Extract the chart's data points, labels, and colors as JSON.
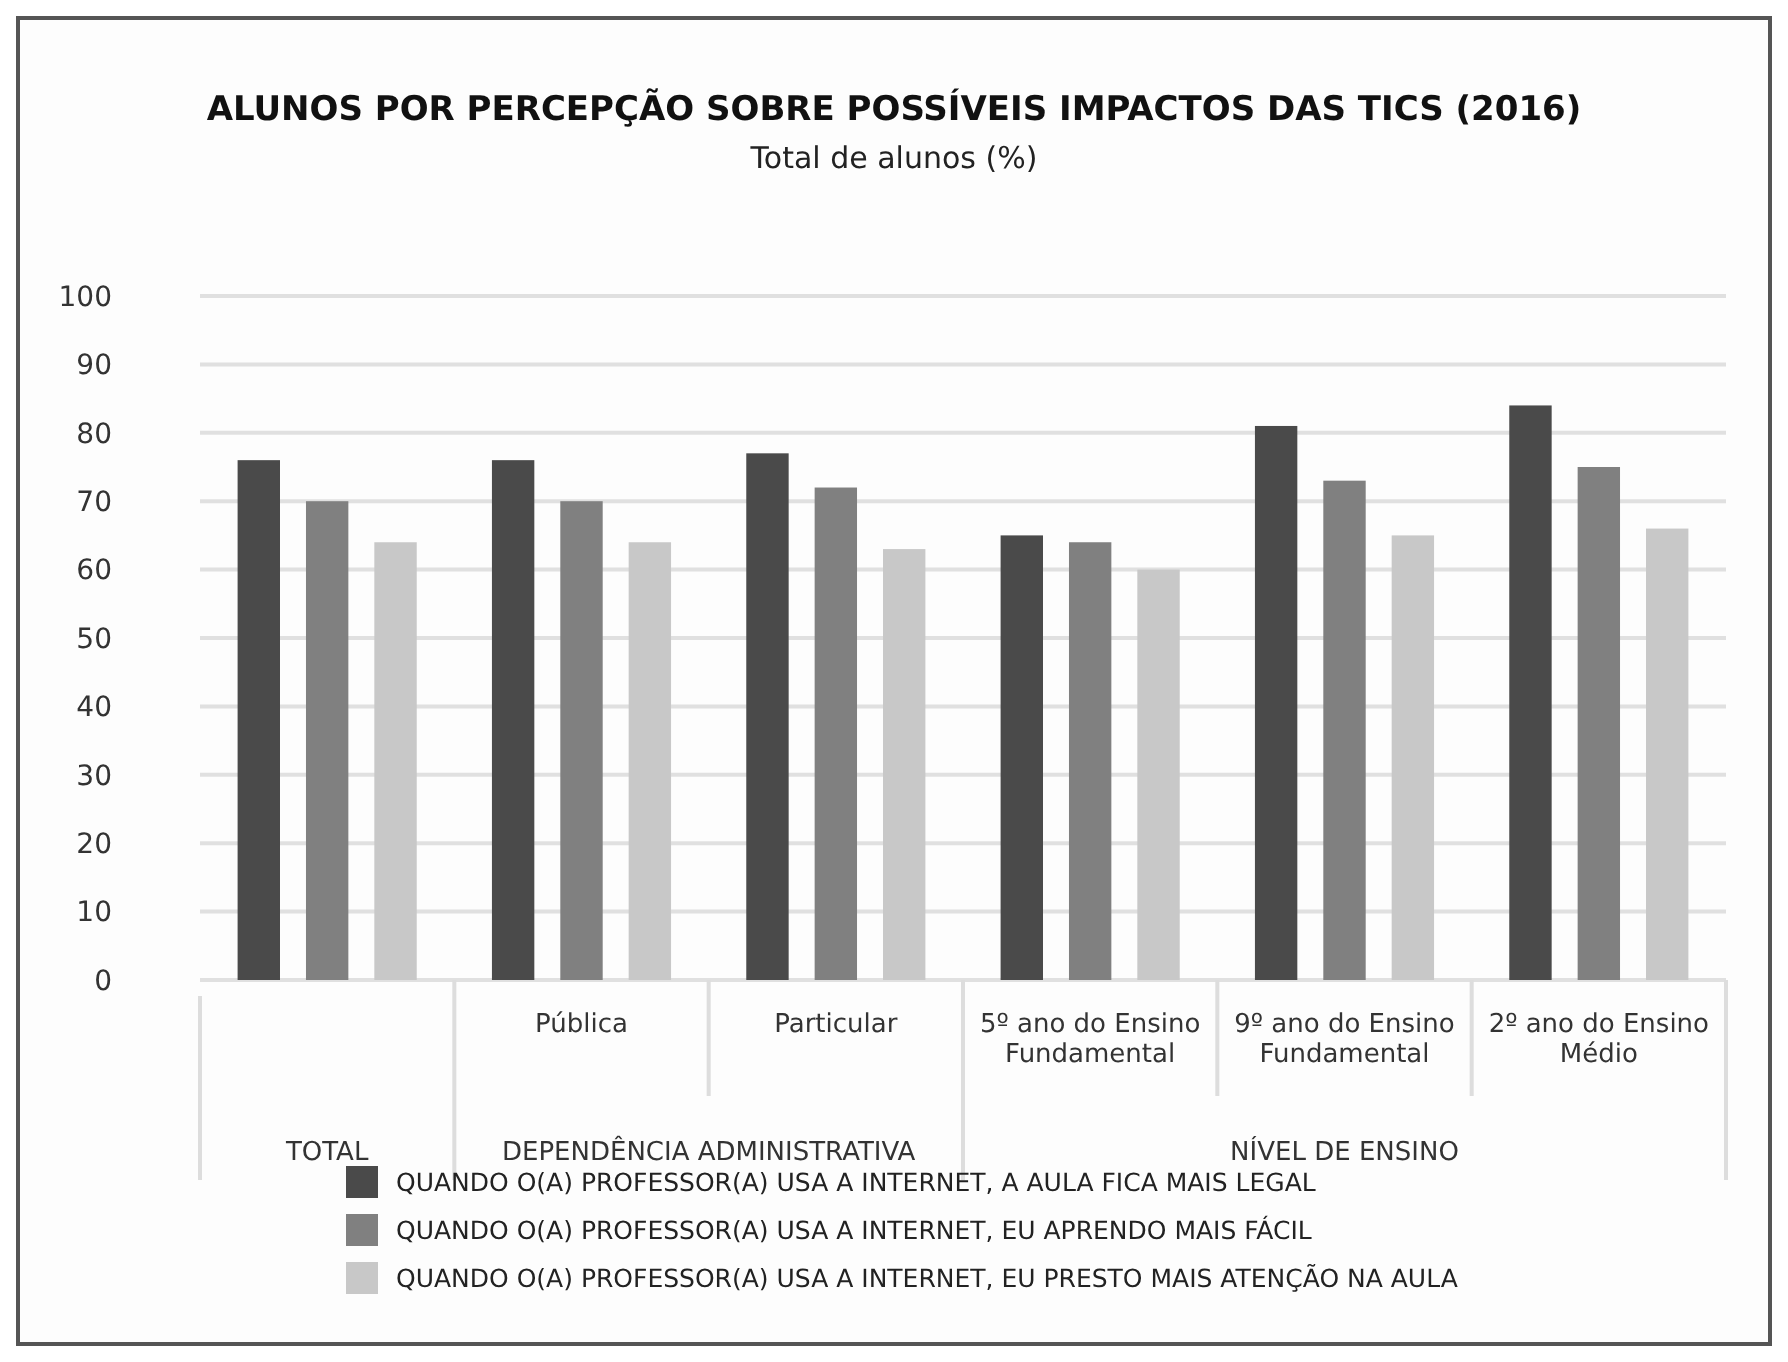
{
  "chart_data": {
    "type": "bar",
    "title": "ALUNOS POR PERCEPÇÃO SOBRE POSSÍVEIS IMPACTOS DAS TICS (2016)",
    "subtitle": "Total de alunos (%)",
    "categories": [
      null,
      "Pública",
      "Particular",
      "5º ano do Ensino Fundamental",
      "9º ano do Ensino Fundamental",
      "2º ano do Ensino Médio"
    ],
    "series": [
      {
        "name": "QUANDO O(A) PROFESSOR(A) USA A INTERNET, A AULA FICA MAIS LEGAL",
        "color": "#4a4a4a",
        "values": [
          76,
          76,
          77,
          65,
          81,
          84
        ]
      },
      {
        "name": "QUANDO O(A) PROFESSOR(A) USA A INTERNET, EU APRENDO MAIS FÁCIL",
        "color": "#808080",
        "values": [
          70,
          70,
          72,
          64,
          73,
          75
        ]
      },
      {
        "name": "QUANDO O(A) PROFESSOR(A) USA A INTERNET, EU PRESTO MAIS ATENÇÃO NA AULA",
        "color": "#c8c8c8",
        "values": [
          64,
          64,
          63,
          60,
          65,
          66
        ]
      }
    ],
    "annotations": [
      "TOTAL",
      "DEPENDÊNCIA ADMINISTRATIVA",
      "NÍVEL DE ENSINO"
    ],
    "ylim": [
      0,
      100
    ],
    "yticks": [
      0,
      10,
      20,
      30,
      40,
      50,
      60,
      70,
      80,
      90,
      100
    ],
    "grid": "y",
    "legend": "bottom"
  }
}
